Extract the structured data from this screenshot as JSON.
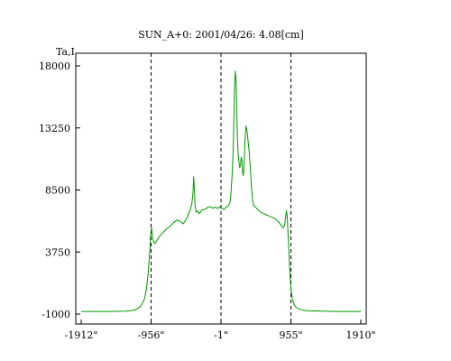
{
  "chart_data": {
    "type": "line",
    "title": "SUN_A+0: 2001/04/26: 4.08[cm]",
    "ylabel": "Ta,I",
    "xlabel": "",
    "xlim": [
      -1912,
      1910
    ],
    "ylim": [
      -1000,
      18000
    ],
    "x_ticks": [
      {
        "value": -1912,
        "label": "-1912\""
      },
      {
        "value": -956,
        "label": "-956\""
      },
      {
        "value": -1,
        "label": "-1\""
      },
      {
        "value": 955,
        "label": "955\""
      },
      {
        "value": 1910,
        "label": "1910\""
      }
    ],
    "y_ticks": [
      {
        "value": 18000,
        "label": "18000"
      },
      {
        "value": 13250,
        "label": "13250"
      },
      {
        "value": 8500,
        "label": "8500"
      },
      {
        "value": 3750,
        "label": "3750"
      },
      {
        "value": -1000,
        "label": "-1000"
      }
    ],
    "vlines": [
      -956,
      -1,
      955
    ],
    "grid": false,
    "line_color": "#009900",
    "series": [
      {
        "values": [
          [
            -1912,
            -800
          ],
          [
            -1700,
            -800
          ],
          [
            -1500,
            -800
          ],
          [
            -1300,
            -780
          ],
          [
            -1200,
            -720
          ],
          [
            -1150,
            -620
          ],
          [
            -1100,
            -400
          ],
          [
            -1050,
            100
          ],
          [
            -1020,
            900
          ],
          [
            -995,
            2200
          ],
          [
            -975,
            3800
          ],
          [
            -960,
            5200
          ],
          [
            -952,
            5600
          ],
          [
            -945,
            5400
          ],
          [
            -935,
            4800
          ],
          [
            -920,
            4500
          ],
          [
            -905,
            4400
          ],
          [
            -880,
            4600
          ],
          [
            -850,
            4900
          ],
          [
            -800,
            5200
          ],
          [
            -750,
            5500
          ],
          [
            -700,
            5700
          ],
          [
            -650,
            6000
          ],
          [
            -600,
            6200
          ],
          [
            -560,
            6100
          ],
          [
            -520,
            5900
          ],
          [
            -480,
            6200
          ],
          [
            -450,
            6600
          ],
          [
            -420,
            7000
          ],
          [
            -400,
            7400
          ],
          [
            -385,
            8200
          ],
          [
            -375,
            9500
          ],
          [
            -365,
            8600
          ],
          [
            -355,
            7300
          ],
          [
            -340,
            6800
          ],
          [
            -320,
            6900
          ],
          [
            -300,
            6700
          ],
          [
            -280,
            6800
          ],
          [
            -260,
            7000
          ],
          [
            -230,
            7000
          ],
          [
            -200,
            7100
          ],
          [
            -170,
            7200
          ],
          [
            -140,
            7200
          ],
          [
            -110,
            7100
          ],
          [
            -80,
            7200
          ],
          [
            -50,
            7100
          ],
          [
            -20,
            7200
          ],
          [
            10,
            7100
          ],
          [
            40,
            7000
          ],
          [
            70,
            7200
          ],
          [
            100,
            7300
          ],
          [
            120,
            7500
          ],
          [
            135,
            8200
          ],
          [
            150,
            9500
          ],
          [
            165,
            11500
          ],
          [
            175,
            14000
          ],
          [
            185,
            16500
          ],
          [
            195,
            17600
          ],
          [
            205,
            17000
          ],
          [
            215,
            14500
          ],
          [
            225,
            12300
          ],
          [
            235,
            11200
          ],
          [
            245,
            10600
          ],
          [
            255,
            10200
          ],
          [
            265,
            10400
          ],
          [
            275,
            11000
          ],
          [
            285,
            10800
          ],
          [
            295,
            9800
          ],
          [
            305,
            9600
          ],
          [
            315,
            10300
          ],
          [
            325,
            12000
          ],
          [
            340,
            13400
          ],
          [
            355,
            13000
          ],
          [
            370,
            12200
          ],
          [
            385,
            11400
          ],
          [
            400,
            10200
          ],
          [
            415,
            8800
          ],
          [
            430,
            7700
          ],
          [
            445,
            7300
          ],
          [
            470,
            7200
          ],
          [
            500,
            7000
          ],
          [
            540,
            6800
          ],
          [
            580,
            6700
          ],
          [
            620,
            6600
          ],
          [
            660,
            6500
          ],
          [
            700,
            6400
          ],
          [
            740,
            6300
          ],
          [
            780,
            6100
          ],
          [
            820,
            5800
          ],
          [
            850,
            5600
          ],
          [
            870,
            5800
          ],
          [
            885,
            6600
          ],
          [
            895,
            6900
          ],
          [
            905,
            6400
          ],
          [
            915,
            5200
          ],
          [
            925,
            4000
          ],
          [
            935,
            2800
          ],
          [
            945,
            1800
          ],
          [
            955,
            1000
          ],
          [
            970,
            300
          ],
          [
            990,
            -150
          ],
          [
            1020,
            -450
          ],
          [
            1060,
            -600
          ],
          [
            1120,
            -700
          ],
          [
            1200,
            -750
          ],
          [
            1400,
            -780
          ],
          [
            1600,
            -800
          ],
          [
            1800,
            -800
          ],
          [
            1910,
            -800
          ]
        ]
      }
    ]
  }
}
